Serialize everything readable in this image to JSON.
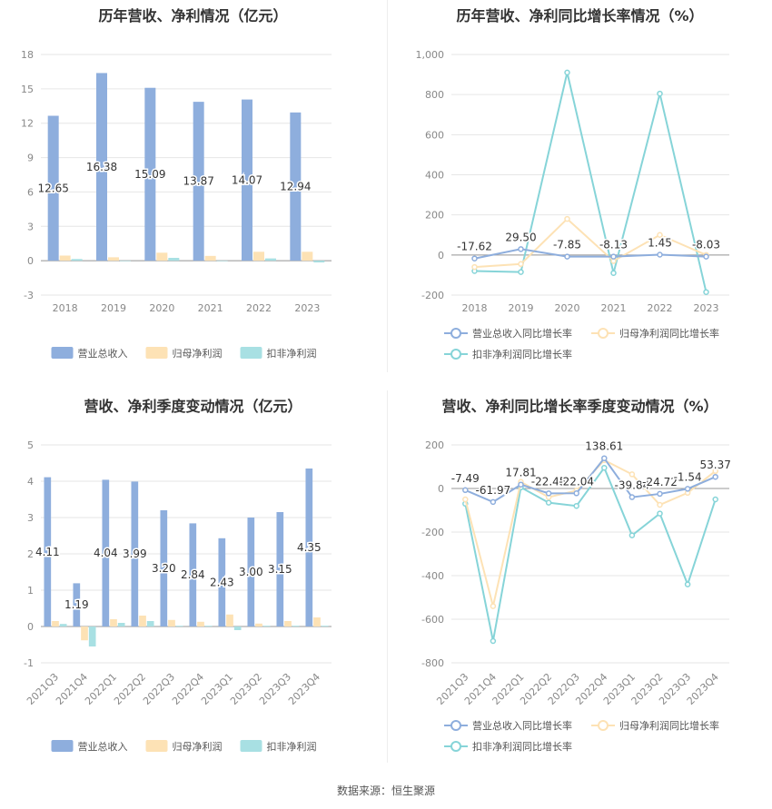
{
  "footer": "数据来源：恒生聚源",
  "colors": {
    "revenue": "#8eaedd",
    "net": "#fde2b5",
    "deduct": "#a8e0e3",
    "rev_line": "#8eaedd",
    "net_line": "#fde2b5",
    "deduct_line": "#86d4d8"
  },
  "chart_data": [
    {
      "id": "c1",
      "type": "bar",
      "title": "历年营收、净利情况（亿元）",
      "categories": [
        "2018",
        "2019",
        "2020",
        "2021",
        "2022",
        "2023"
      ],
      "ylim": [
        -3,
        18
      ],
      "yticks": [
        -3,
        0,
        3,
        6,
        9,
        12,
        15,
        18
      ],
      "ytick_labels": [
        "-3",
        "0",
        "3",
        "6",
        "9",
        "12",
        "15",
        "18"
      ],
      "series": [
        {
          "name": "营业总收入",
          "values": [
            12.65,
            16.38,
            15.09,
            13.87,
            14.07,
            12.94
          ],
          "labels": [
            "12.65",
            "16.38",
            "15.09",
            "13.87",
            "14.07",
            "12.94"
          ]
        },
        {
          "name": "归母净利润",
          "values": [
            0.45,
            0.3,
            0.7,
            0.42,
            0.78,
            0.78
          ]
        },
        {
          "name": "扣非净利润",
          "values": [
            0.15,
            0.0,
            0.25,
            0.0,
            0.2,
            -0.15
          ]
        }
      ],
      "legend": "bottom"
    },
    {
      "id": "c2",
      "type": "line",
      "title": "历年营收、净利同比增长率情况（%）",
      "categories": [
        "2018",
        "2019",
        "2020",
        "2021",
        "2022",
        "2023"
      ],
      "ylim": [
        -200,
        1000
      ],
      "yticks": [
        -200,
        0,
        200,
        400,
        600,
        800,
        1000
      ],
      "ytick_labels": [
        "-200",
        "0",
        "200",
        "400",
        "600",
        "800",
        "1,000"
      ],
      "series": [
        {
          "name": "营业总收入同比增长率",
          "values": [
            -17.62,
            29.5,
            -7.85,
            -8.13,
            1.45,
            -8.03
          ],
          "labels": [
            "-17.62",
            "29.50",
            "-7.85",
            "-8.13",
            "1.45",
            "-8.03"
          ]
        },
        {
          "name": "归母净利润同比增长率",
          "values": [
            -60,
            -45,
            180,
            -30,
            100,
            0
          ]
        },
        {
          "name": "扣非净利润同比增长率",
          "values": [
            -80,
            -85,
            910,
            -90,
            805,
            -185
          ]
        }
      ],
      "legend": "bottom"
    },
    {
      "id": "c3",
      "type": "bar",
      "title": "营收、净利季度变动情况（亿元）",
      "categories": [
        "2021Q3",
        "2021Q4",
        "2022Q1",
        "2022Q2",
        "2022Q3",
        "2022Q4",
        "2023Q1",
        "2023Q2",
        "2023Q3",
        "2023Q4"
      ],
      "ylim": [
        -1,
        5
      ],
      "yticks": [
        -1,
        0,
        1,
        2,
        3,
        4,
        5
      ],
      "ytick_labels": [
        "-1",
        "0",
        "1",
        "2",
        "3",
        "4",
        "5"
      ],
      "series": [
        {
          "name": "营业总收入",
          "values": [
            4.11,
            1.19,
            4.04,
            3.99,
            3.2,
            2.84,
            2.43,
            3.0,
            3.15,
            4.35
          ],
          "labels": [
            "4.11",
            "1.19",
            "4.04",
            "3.99",
            "3.20",
            "2.84",
            "2.43",
            "3.00",
            "3.15",
            "4.35"
          ]
        },
        {
          "name": "归母净利润",
          "values": [
            0.15,
            -0.38,
            0.2,
            0.3,
            0.18,
            0.13,
            0.33,
            0.08,
            0.15,
            0.25
          ]
        },
        {
          "name": "扣非净利润",
          "values": [
            0.07,
            -0.55,
            0.1,
            0.15,
            0.02,
            0.02,
            -0.1,
            0.02,
            0.02,
            0.02
          ]
        }
      ],
      "legend": "bottom"
    },
    {
      "id": "c4",
      "type": "line",
      "title": "营收、净利同比增长率季度变动情况（%）",
      "categories": [
        "2021Q3",
        "2021Q4",
        "2022Q1",
        "2022Q2",
        "2022Q3",
        "2022Q4",
        "2023Q1",
        "2023Q2",
        "2023Q3",
        "2023Q4"
      ],
      "ylim": [
        -800,
        200
      ],
      "yticks": [
        -800,
        -600,
        -400,
        -200,
        0,
        200
      ],
      "ytick_labels": [
        "-800",
        "-600",
        "-400",
        "-200",
        "0",
        "200"
      ],
      "series": [
        {
          "name": "营业总收入同比增长率",
          "values": [
            -7.49,
            -61.97,
            17.81,
            -22.45,
            -22.04,
            138.61,
            -39.84,
            -24.72,
            -1.54,
            53.37
          ],
          "labels": [
            "-7.49",
            "-61.97",
            "17.81",
            "-22.45",
            "-22.04",
            "138.61",
            "-39.84",
            "-24.72",
            "-1.54",
            "53.37"
          ]
        },
        {
          "name": "归母净利润同比增长率",
          "values": [
            -50,
            -540,
            30,
            -40,
            -10,
            130,
            65,
            -75,
            -20,
            80
          ]
        },
        {
          "name": "扣非净利润同比增长率",
          "values": [
            -70,
            -700,
            5,
            -65,
            -80,
            95,
            -215,
            -115,
            -440,
            -50
          ]
        }
      ],
      "legend": "bottom"
    }
  ]
}
